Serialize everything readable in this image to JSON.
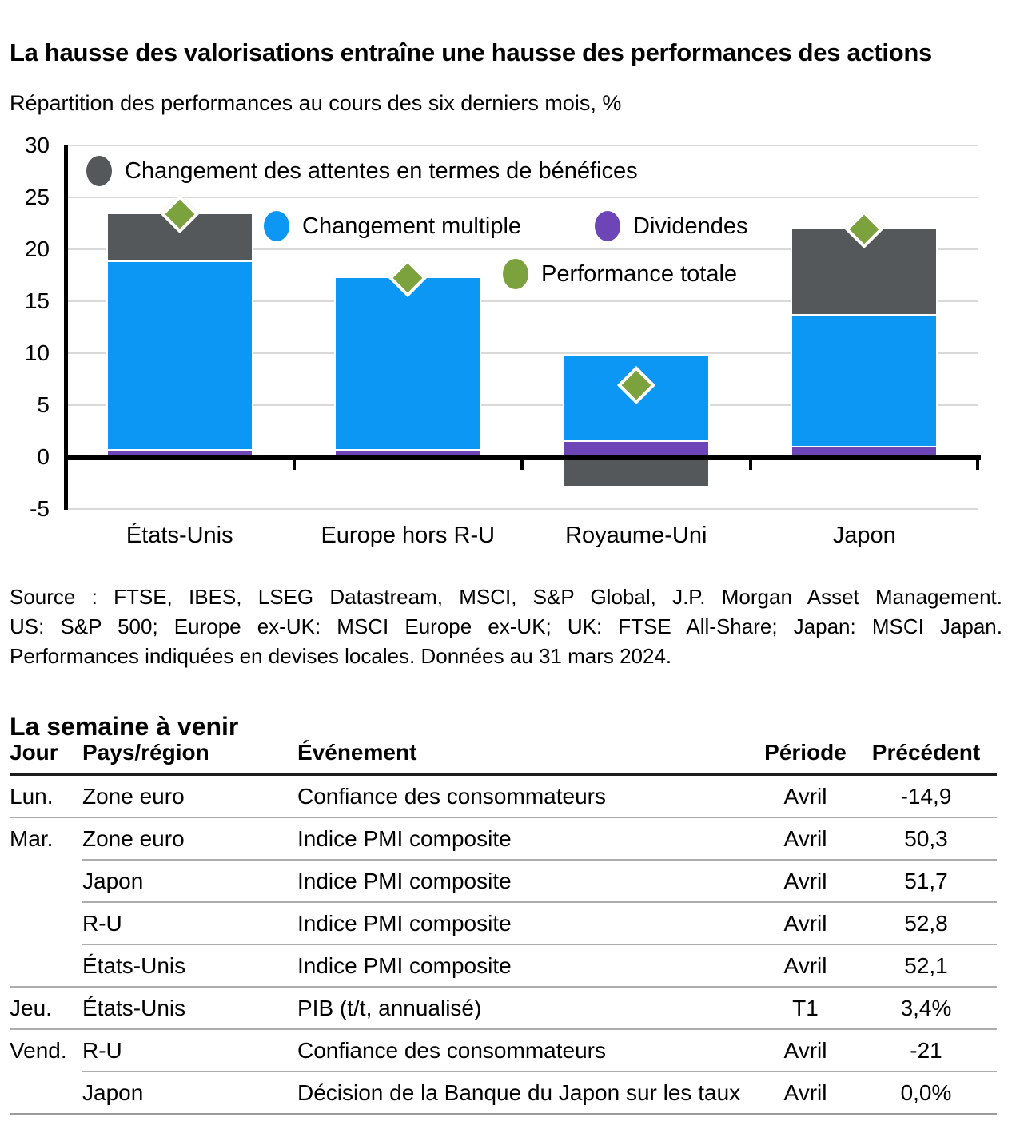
{
  "chart_data": {
    "type": "bar",
    "stacked": true,
    "title": "La hausse des valorisations entraîne une hausse des performances des actions",
    "subtitle": "Répartition des performances au cours des six derniers mois, %",
    "xlabel": "",
    "ylabel": "",
    "ylim": [
      -5,
      30
    ],
    "ytick_step": 5,
    "yticks": [
      "30",
      "25",
      "20",
      "15",
      "10",
      "5",
      "0",
      "-5"
    ],
    "grid": true,
    "legend_position": "inside-top-left",
    "categories": [
      "États-Unis",
      "Europe hors R-U",
      "Royaume-Uni",
      "Japon"
    ],
    "series": [
      {
        "name": "Dividendes",
        "color": "#6d45b6",
        "values": [
          0.8,
          0.8,
          1.6,
          1.1
        ]
      },
      {
        "name": "Changement multiple",
        "color": "#0b97f3",
        "values": [
          18.1,
          16.4,
          8.1,
          12.7
        ]
      },
      {
        "name": "Changement des attentes en termes de bénéfices",
        "color": "#54585a",
        "values": [
          4.5,
          0.0,
          -2.8,
          8.1
        ]
      }
    ],
    "total_series": {
      "name": "Performance totale",
      "color": "#7ba23c",
      "marker": "diamond",
      "values": [
        23.4,
        17.2,
        6.9,
        21.9
      ]
    }
  },
  "source_lines": [
    "Source : FTSE, IBES, LSEG Datastream, MSCI, S&P Global, J.P. Morgan Asset Management.",
    "US: S&P 500; Europe ex-UK: MSCI Europe ex-UK; UK: FTSE All-Share; Japan: MSCI Japan.",
    "Performances indiquées en devises locales. Données au 31 mars 2024."
  ],
  "week": {
    "title": "La semaine à venir",
    "columns": [
      "Jour",
      "Pays/région",
      "Événement",
      "Période",
      "Précédent"
    ],
    "rows": [
      {
        "day": "Lun.",
        "region": "Zone euro",
        "event": "Confiance des consommateurs",
        "period": "Avril",
        "previous": "-14,9"
      },
      {
        "day": "Mar.",
        "region": "Zone euro",
        "event": "Indice PMI composite",
        "period": "Avril",
        "previous": "50,3"
      },
      {
        "day": "",
        "region": "Japon",
        "event": "Indice PMI composite",
        "period": "Avril",
        "previous": "51,7"
      },
      {
        "day": "",
        "region": "R-U",
        "event": "Indice PMI composite",
        "period": "Avril",
        "previous": "52,8"
      },
      {
        "day": "",
        "region": "États-Unis",
        "event": "Indice PMI composite",
        "period": "Avril",
        "previous": "52,1"
      },
      {
        "day": "Jeu.",
        "region": "États-Unis",
        "event": "PIB (t/t, annualisé)",
        "period": "T1",
        "previous": "3,4%"
      },
      {
        "day": "Vend.",
        "region": "R-U",
        "event": "Confiance des consommateurs",
        "period": "Avril",
        "previous": "-21"
      },
      {
        "day": "",
        "region": "Japon",
        "event": "Décision de la Banque du Japon sur les taux",
        "period": "Avril",
        "previous": "0,0%"
      }
    ]
  },
  "colors": {
    "grid": "#d9d9d9",
    "axis": "#000000",
    "header_rule": "#1c1c1c",
    "row_rule": "#acacac",
    "bottom_rule": "#9b9b9b"
  }
}
